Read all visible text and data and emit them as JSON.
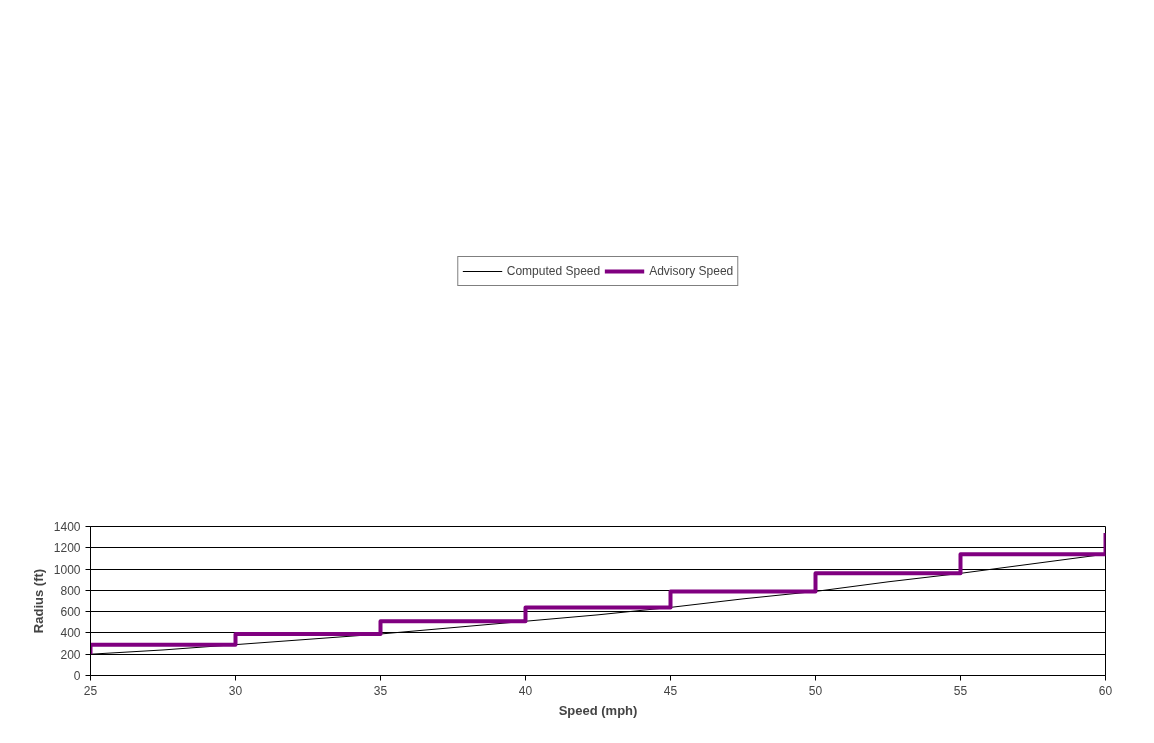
{
  "chart_data": {
    "type": "line",
    "xlabel": "Speed (mph)",
    "ylabel": "Radius (ft)",
    "xlim": [
      25,
      60
    ],
    "xticks": [
      25,
      30,
      35,
      40,
      45,
      50,
      55,
      60
    ],
    "ylim": [
      0,
      1400
    ],
    "yticks": [
      0,
      200,
      400,
      600,
      800,
      1000,
      1200,
      1400
    ],
    "grid": "y",
    "legend": "top",
    "marker": "none",
    "series": [
      {
        "name": "Computed Speed",
        "color": "#000000",
        "x": [
          25,
          27.5,
          30,
          32.5,
          35,
          37.5,
          40,
          42.5,
          45,
          47.5,
          50,
          52.5,
          55,
          57.5,
          60
        ],
        "values": [
          200,
          240,
          290,
          340,
          390,
          450,
          510,
          570,
          640,
          720,
          790,
          880,
          960,
          1050,
          1140
        ]
      },
      {
        "name": "Advisory Speed",
        "color": "#800080",
        "x": [
          25,
          25,
          30,
          30,
          35,
          35,
          40,
          40,
          45,
          45,
          50,
          50,
          55,
          55,
          60,
          60
        ],
        "values": [
          200,
          290,
          290,
          390,
          390,
          510,
          510,
          640,
          640,
          790,
          790,
          960,
          960,
          1140,
          1140,
          1340
        ]
      }
    ]
  }
}
